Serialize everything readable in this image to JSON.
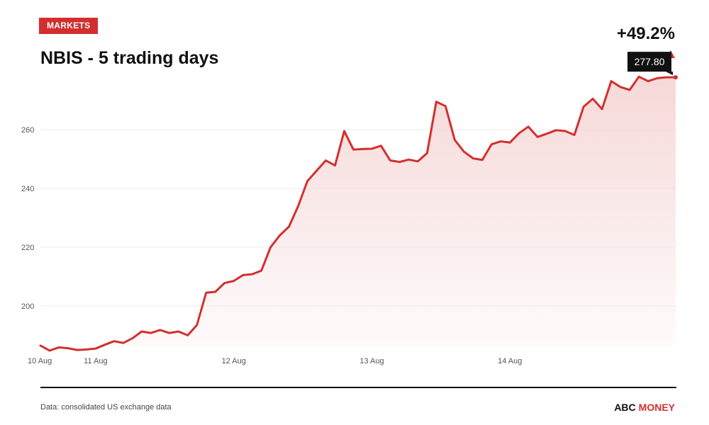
{
  "header": {
    "badge": "MARKETS",
    "title": "NBIS - 5 trading days",
    "change": "+49.2%"
  },
  "footer": {
    "source": "Data: consolidated US exchange data",
    "brand_part1": "ABC",
    "brand_part2": "MONEY"
  },
  "colors": {
    "accent": "#d32f2f",
    "line": "#d32f2f",
    "fill": "#f6d6d6",
    "grid": "#eeeeee",
    "label_bg": "#111111"
  },
  "chart_data": {
    "type": "area",
    "title": "NBIS - 5 trading days",
    "xlabel": "",
    "ylabel": "",
    "ylim": [
      186,
      280
    ],
    "yticks": [
      200,
      220,
      240,
      260
    ],
    "xtick_labels": [
      "10 Aug",
      "11 Aug",
      "12 Aug",
      "13 Aug",
      "14 Aug"
    ],
    "xtick_positions": [
      0,
      6,
      21,
      36,
      51
    ],
    "grid": true,
    "last_value_label": "277.80",
    "series": [
      {
        "values": [
          186.5,
          184.8,
          185.9,
          185.6,
          185.0,
          185.2,
          185.5,
          186.8,
          188.0,
          187.4,
          189.0,
          191.3,
          190.8,
          191.8,
          190.8,
          191.3,
          190.0,
          193.5,
          204.5,
          204.8,
          207.8,
          208.5,
          210.5,
          210.8,
          212.0,
          220.0,
          224.0,
          227.0,
          234.0,
          242.5,
          246.0,
          249.5,
          247.8,
          259.5,
          253.2,
          253.4,
          253.5,
          254.5,
          249.5,
          249.0,
          249.8,
          249.2,
          252.0,
          269.5,
          268.0,
          256.5,
          252.5,
          250.2,
          249.7,
          255.0,
          256.0,
          255.6,
          258.8,
          261.0,
          257.5,
          258.6,
          259.8,
          259.5,
          258.2,
          267.8,
          270.5,
          267.0,
          276.5,
          274.5,
          273.5,
          278.0,
          276.5,
          277.5,
          277.8,
          277.8
        ]
      }
    ]
  }
}
